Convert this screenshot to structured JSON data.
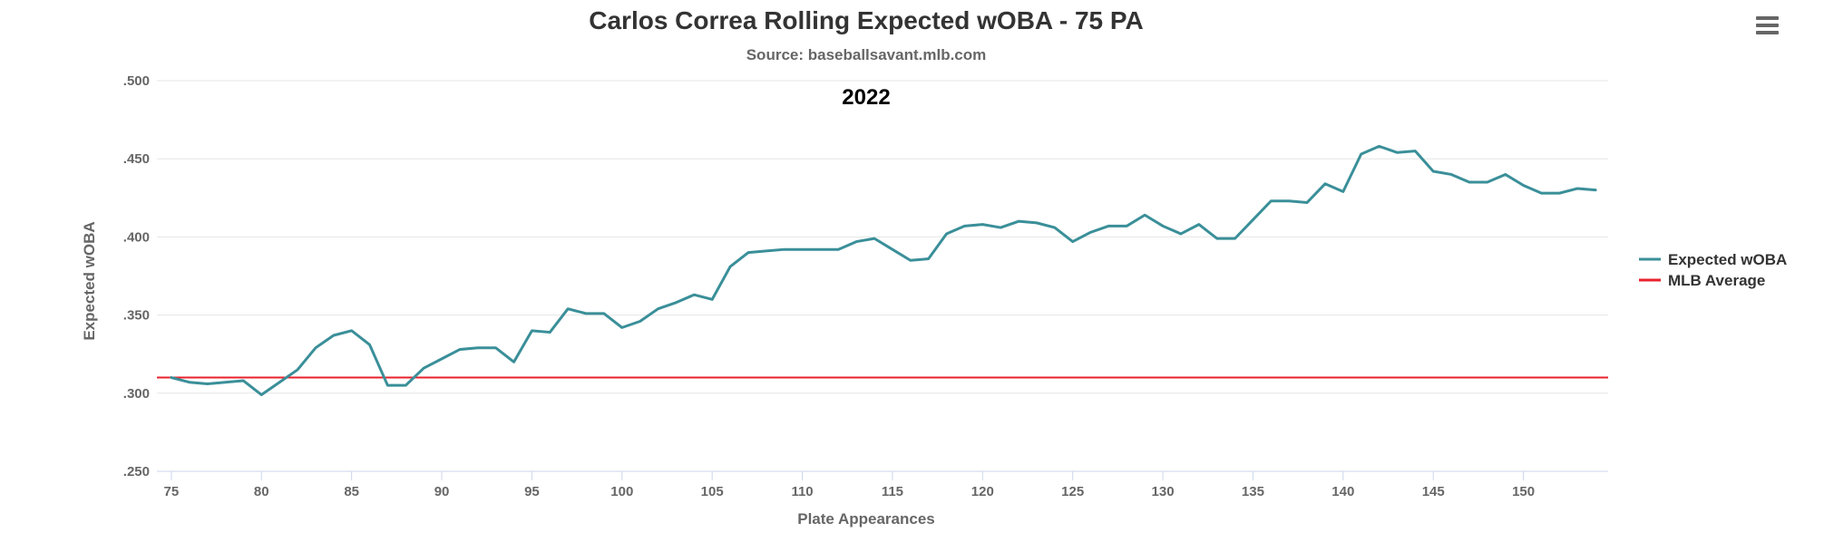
{
  "chart_data": {
    "type": "line",
    "title": "Carlos Correa Rolling Expected wOBA - 75 PA",
    "subtitle": "Source: baseballsavant.mlb.com",
    "annotation": "2022",
    "xlabel": "Plate Appearances",
    "ylabel": "Expected wOBA",
    "xlim": [
      74.2,
      154.7
    ],
    "ylim": [
      0.25,
      0.5
    ],
    "x_ticks": [
      75,
      80,
      85,
      90,
      95,
      100,
      105,
      110,
      115,
      120,
      125,
      130,
      135,
      140,
      145,
      150
    ],
    "y_ticks": [
      0.25,
      0.3,
      0.35,
      0.4,
      0.45,
      0.5
    ],
    "y_tick_labels": [
      ".250",
      ".300",
      ".350",
      ".400",
      ".450",
      ".500"
    ],
    "grid": true,
    "legend_position": "right",
    "series": [
      {
        "name": "Expected wOBA",
        "color": "#3a8f99",
        "x": [
          75,
          76,
          77,
          78,
          79,
          80,
          81,
          82,
          83,
          84,
          85,
          86,
          87,
          88,
          89,
          90,
          91,
          92,
          93,
          94,
          95,
          96,
          97,
          98,
          99,
          100,
          101,
          102,
          103,
          104,
          105,
          106,
          107,
          108,
          109,
          110,
          111,
          112,
          113,
          114,
          115,
          116,
          117,
          118,
          119,
          120,
          121,
          122,
          123,
          124,
          125,
          126,
          127,
          128,
          129,
          130,
          131,
          132,
          133,
          134,
          135,
          136,
          137,
          138,
          139,
          140,
          141,
          142,
          143,
          144,
          145,
          146,
          147,
          148,
          149,
          150,
          151,
          152,
          153,
          154
        ],
        "values": [
          0.31,
          0.307,
          0.306,
          0.307,
          0.308,
          0.299,
          0.307,
          0.315,
          0.329,
          0.337,
          0.34,
          0.331,
          0.305,
          0.305,
          0.316,
          0.322,
          0.328,
          0.329,
          0.329,
          0.32,
          0.34,
          0.339,
          0.354,
          0.351,
          0.351,
          0.342,
          0.346,
          0.354,
          0.358,
          0.363,
          0.36,
          0.381,
          0.39,
          0.391,
          0.392,
          0.392,
          0.392,
          0.392,
          0.397,
          0.399,
          0.392,
          0.385,
          0.386,
          0.402,
          0.407,
          0.408,
          0.406,
          0.41,
          0.409,
          0.406,
          0.397,
          0.403,
          0.407,
          0.407,
          0.414,
          0.407,
          0.402,
          0.408,
          0.399,
          0.399,
          0.411,
          0.423,
          0.423,
          0.422,
          0.434,
          0.429,
          0.453,
          0.458,
          0.454,
          0.455,
          0.442,
          0.44,
          0.435,
          0.435,
          0.44,
          0.433,
          0.428,
          0.428,
          0.431,
          0.43
        ]
      },
      {
        "name": "MLB Average",
        "color": "#e8212b",
        "constant": 0.31
      }
    ]
  },
  "ui": {
    "menu_icon": "hamburger-menu-icon"
  }
}
